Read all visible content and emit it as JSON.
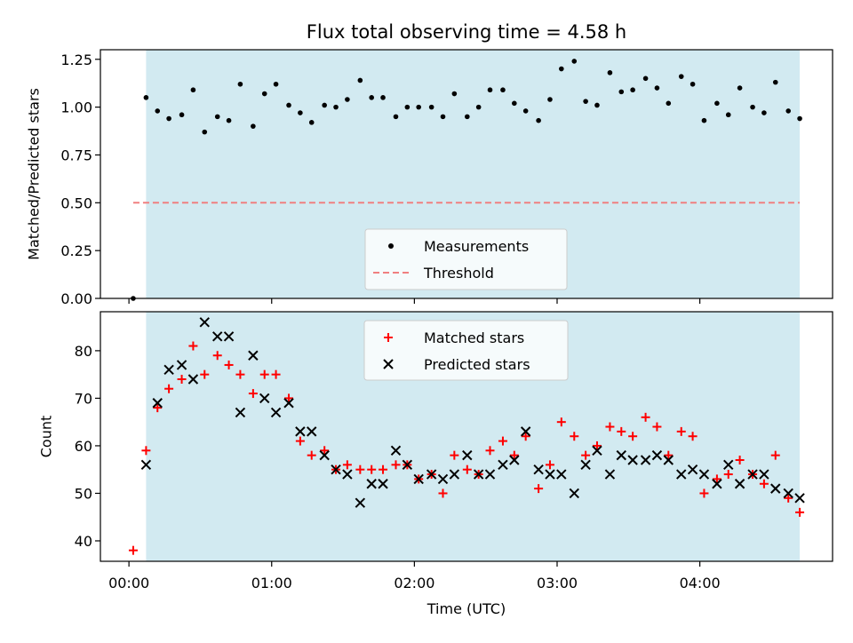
{
  "chart_data": {
    "title": "Flux total observing time = 4.58 h",
    "xlabel": "Time (UTC)",
    "x_unit": "hours (UTC)",
    "xlim": [
      -0.2,
      4.93
    ],
    "x_ticks": [
      0,
      1,
      2,
      3,
      4
    ],
    "x_tick_labels": [
      "00:00",
      "01:00",
      "02:00",
      "03:00",
      "04:00"
    ],
    "shaded_interval": [
      0.12,
      4.7
    ],
    "shade_color": "#add8e6",
    "panels": [
      {
        "type": "scatter",
        "ylabel": "Matched/Predicted stars",
        "ylim": [
          0,
          1.3
        ],
        "y_ticks": [
          0.0,
          0.25,
          0.5,
          0.75,
          1.0,
          1.25
        ],
        "y_tick_labels": [
          "0.00",
          "0.25",
          "0.50",
          "0.75",
          "1.00",
          "1.25"
        ],
        "legend_position": "lower center",
        "threshold": {
          "name": "Threshold",
          "value": 0.5,
          "x_range": [
            0.03,
            4.7
          ],
          "color": "#f08080",
          "style": "dashed"
        },
        "series": [
          {
            "name": "Measurements",
            "marker": "dot",
            "color": "#000000",
            "x": [
              0.03,
              0.12,
              0.2,
              0.28,
              0.37,
              0.45,
              0.53,
              0.62,
              0.7,
              0.78,
              0.87,
              0.95,
              1.03,
              1.12,
              1.2,
              1.28,
              1.37,
              1.45,
              1.53,
              1.62,
              1.7,
              1.78,
              1.87,
              1.95,
              2.03,
              2.12,
              2.2,
              2.28,
              2.37,
              2.45,
              2.53,
              2.62,
              2.7,
              2.78,
              2.87,
              2.95,
              3.03,
              3.12,
              3.2,
              3.28,
              3.37,
              3.45,
              3.53,
              3.62,
              3.7,
              3.78,
              3.87,
              3.95,
              4.03,
              4.12,
              4.2,
              4.28,
              4.37,
              4.45,
              4.53,
              4.62,
              4.7
            ],
            "values": [
              0.0,
              1.05,
              0.98,
              0.94,
              0.96,
              1.09,
              0.87,
              0.95,
              0.93,
              1.12,
              0.9,
              1.07,
              1.12,
              1.01,
              0.97,
              0.92,
              1.01,
              1.0,
              1.04,
              1.14,
              1.05,
              1.05,
              0.95,
              1.0,
              1.0,
              1.0,
              0.95,
              1.07,
              0.95,
              1.0,
              1.09,
              1.09,
              1.02,
              0.98,
              0.93,
              1.04,
              1.2,
              1.24,
              1.03,
              1.01,
              1.18,
              1.08,
              1.09,
              1.15,
              1.1,
              1.02,
              1.16,
              1.12,
              0.93,
              1.02,
              0.96,
              1.1,
              1.0,
              0.97,
              1.13,
              0.98,
              0.94
            ]
          }
        ]
      },
      {
        "type": "scatter",
        "ylabel": "Count",
        "ylim": [
          35.7,
          88.2
        ],
        "y_ticks": [
          40,
          50,
          60,
          70,
          80
        ],
        "y_tick_labels": [
          "40",
          "50",
          "60",
          "70",
          "80"
        ],
        "legend_position": "upper center",
        "series": [
          {
            "name": "Matched stars",
            "marker": "plus",
            "color": "#ff0000",
            "x": [
              0.03,
              0.12,
              0.2,
              0.28,
              0.37,
              0.45,
              0.53,
              0.62,
              0.7,
              0.78,
              0.87,
              0.95,
              1.03,
              1.12,
              1.2,
              1.28,
              1.37,
              1.45,
              1.53,
              1.62,
              1.7,
              1.78,
              1.87,
              1.95,
              2.03,
              2.12,
              2.2,
              2.28,
              2.37,
              2.45,
              2.53,
              2.62,
              2.7,
              2.78,
              2.87,
              2.95,
              3.03,
              3.12,
              3.2,
              3.28,
              3.37,
              3.45,
              3.53,
              3.62,
              3.7,
              3.78,
              3.87,
              3.95,
              4.03,
              4.12,
              4.2,
              4.28,
              4.37,
              4.45,
              4.53,
              4.62,
              4.7
            ],
            "values": [
              38,
              59,
              68,
              72,
              74,
              81,
              75,
              79,
              77,
              75,
              71,
              75,
              75,
              70,
              61,
              58,
              59,
              55,
              56,
              55,
              55,
              55,
              56,
              56,
              53,
              54,
              50,
              58,
              55,
              54,
              59,
              61,
              58,
              62,
              51,
              56,
              65,
              62,
              58,
              60,
              64,
              63,
              62,
              66,
              64,
              58,
              63,
              62,
              50,
              53,
              54,
              57,
              54,
              52,
              58,
              49,
              46
            ]
          },
          {
            "name": "Predicted stars",
            "marker": "x",
            "color": "#000000",
            "x": [
              0.12,
              0.2,
              0.28,
              0.37,
              0.45,
              0.53,
              0.62,
              0.7,
              0.78,
              0.87,
              0.95,
              1.03,
              1.12,
              1.2,
              1.28,
              1.37,
              1.45,
              1.53,
              1.62,
              1.7,
              1.78,
              1.87,
              1.95,
              2.03,
              2.12,
              2.2,
              2.28,
              2.37,
              2.45,
              2.53,
              2.62,
              2.7,
              2.78,
              2.87,
              2.95,
              3.03,
              3.12,
              3.2,
              3.28,
              3.37,
              3.45,
              3.53,
              3.62,
              3.7,
              3.78,
              3.87,
              3.95,
              4.03,
              4.12,
              4.2,
              4.28,
              4.37,
              4.45,
              4.53,
              4.62,
              4.7
            ],
            "values": [
              56,
              69,
              76,
              77,
              74,
              86,
              83,
              83,
              67,
              79,
              70,
              67,
              69,
              63,
              63,
              58,
              55,
              54,
              48,
              52,
              52,
              59,
              56,
              53,
              54,
              53,
              54,
              58,
              54,
              54,
              56,
              57,
              63,
              55,
              54,
              54,
              50,
              56,
              59,
              54,
              58,
              57,
              57,
              58,
              57,
              54,
              55,
              54,
              52,
              56,
              52,
              54,
              54,
              51,
              50,
              49
            ]
          }
        ]
      }
    ]
  }
}
